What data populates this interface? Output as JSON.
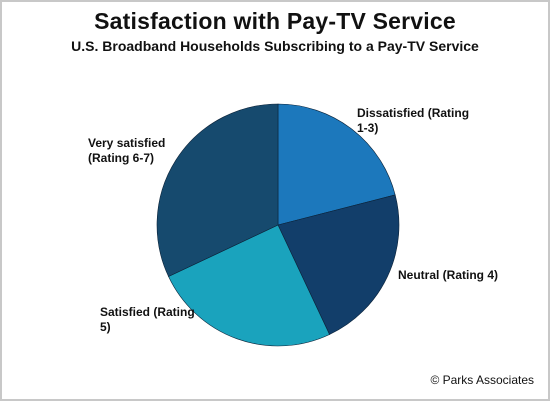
{
  "chart_data": {
    "type": "pie",
    "title": "Satisfaction with Pay-TV Service",
    "subtitle": "U.S. Broadband Households Subscribing to a Pay-TV Service",
    "slices": [
      {
        "label": "Dissatisfied (Rating 1-3)",
        "label_lines": [
          "Dissatisfied (Rating",
          "1-3)"
        ],
        "value": 21,
        "color": "#1c78bc"
      },
      {
        "label": "Neutral (Rating 4)",
        "label_lines": [
          "Neutral (Rating 4)"
        ],
        "value": 22,
        "color": "#123e6a"
      },
      {
        "label": "Satisfied (Rating 5)",
        "label_lines": [
          "Satisfied (Rating",
          "5)"
        ],
        "value": 25,
        "color": "#1aa3bd"
      },
      {
        "label": "Very satisfied (Rating 6-7)",
        "label_lines": [
          "Very satisfied",
          "(Rating 6-7)"
        ],
        "value": 32,
        "color": "#164a6e"
      }
    ]
  },
  "source": "© Parks Associates"
}
